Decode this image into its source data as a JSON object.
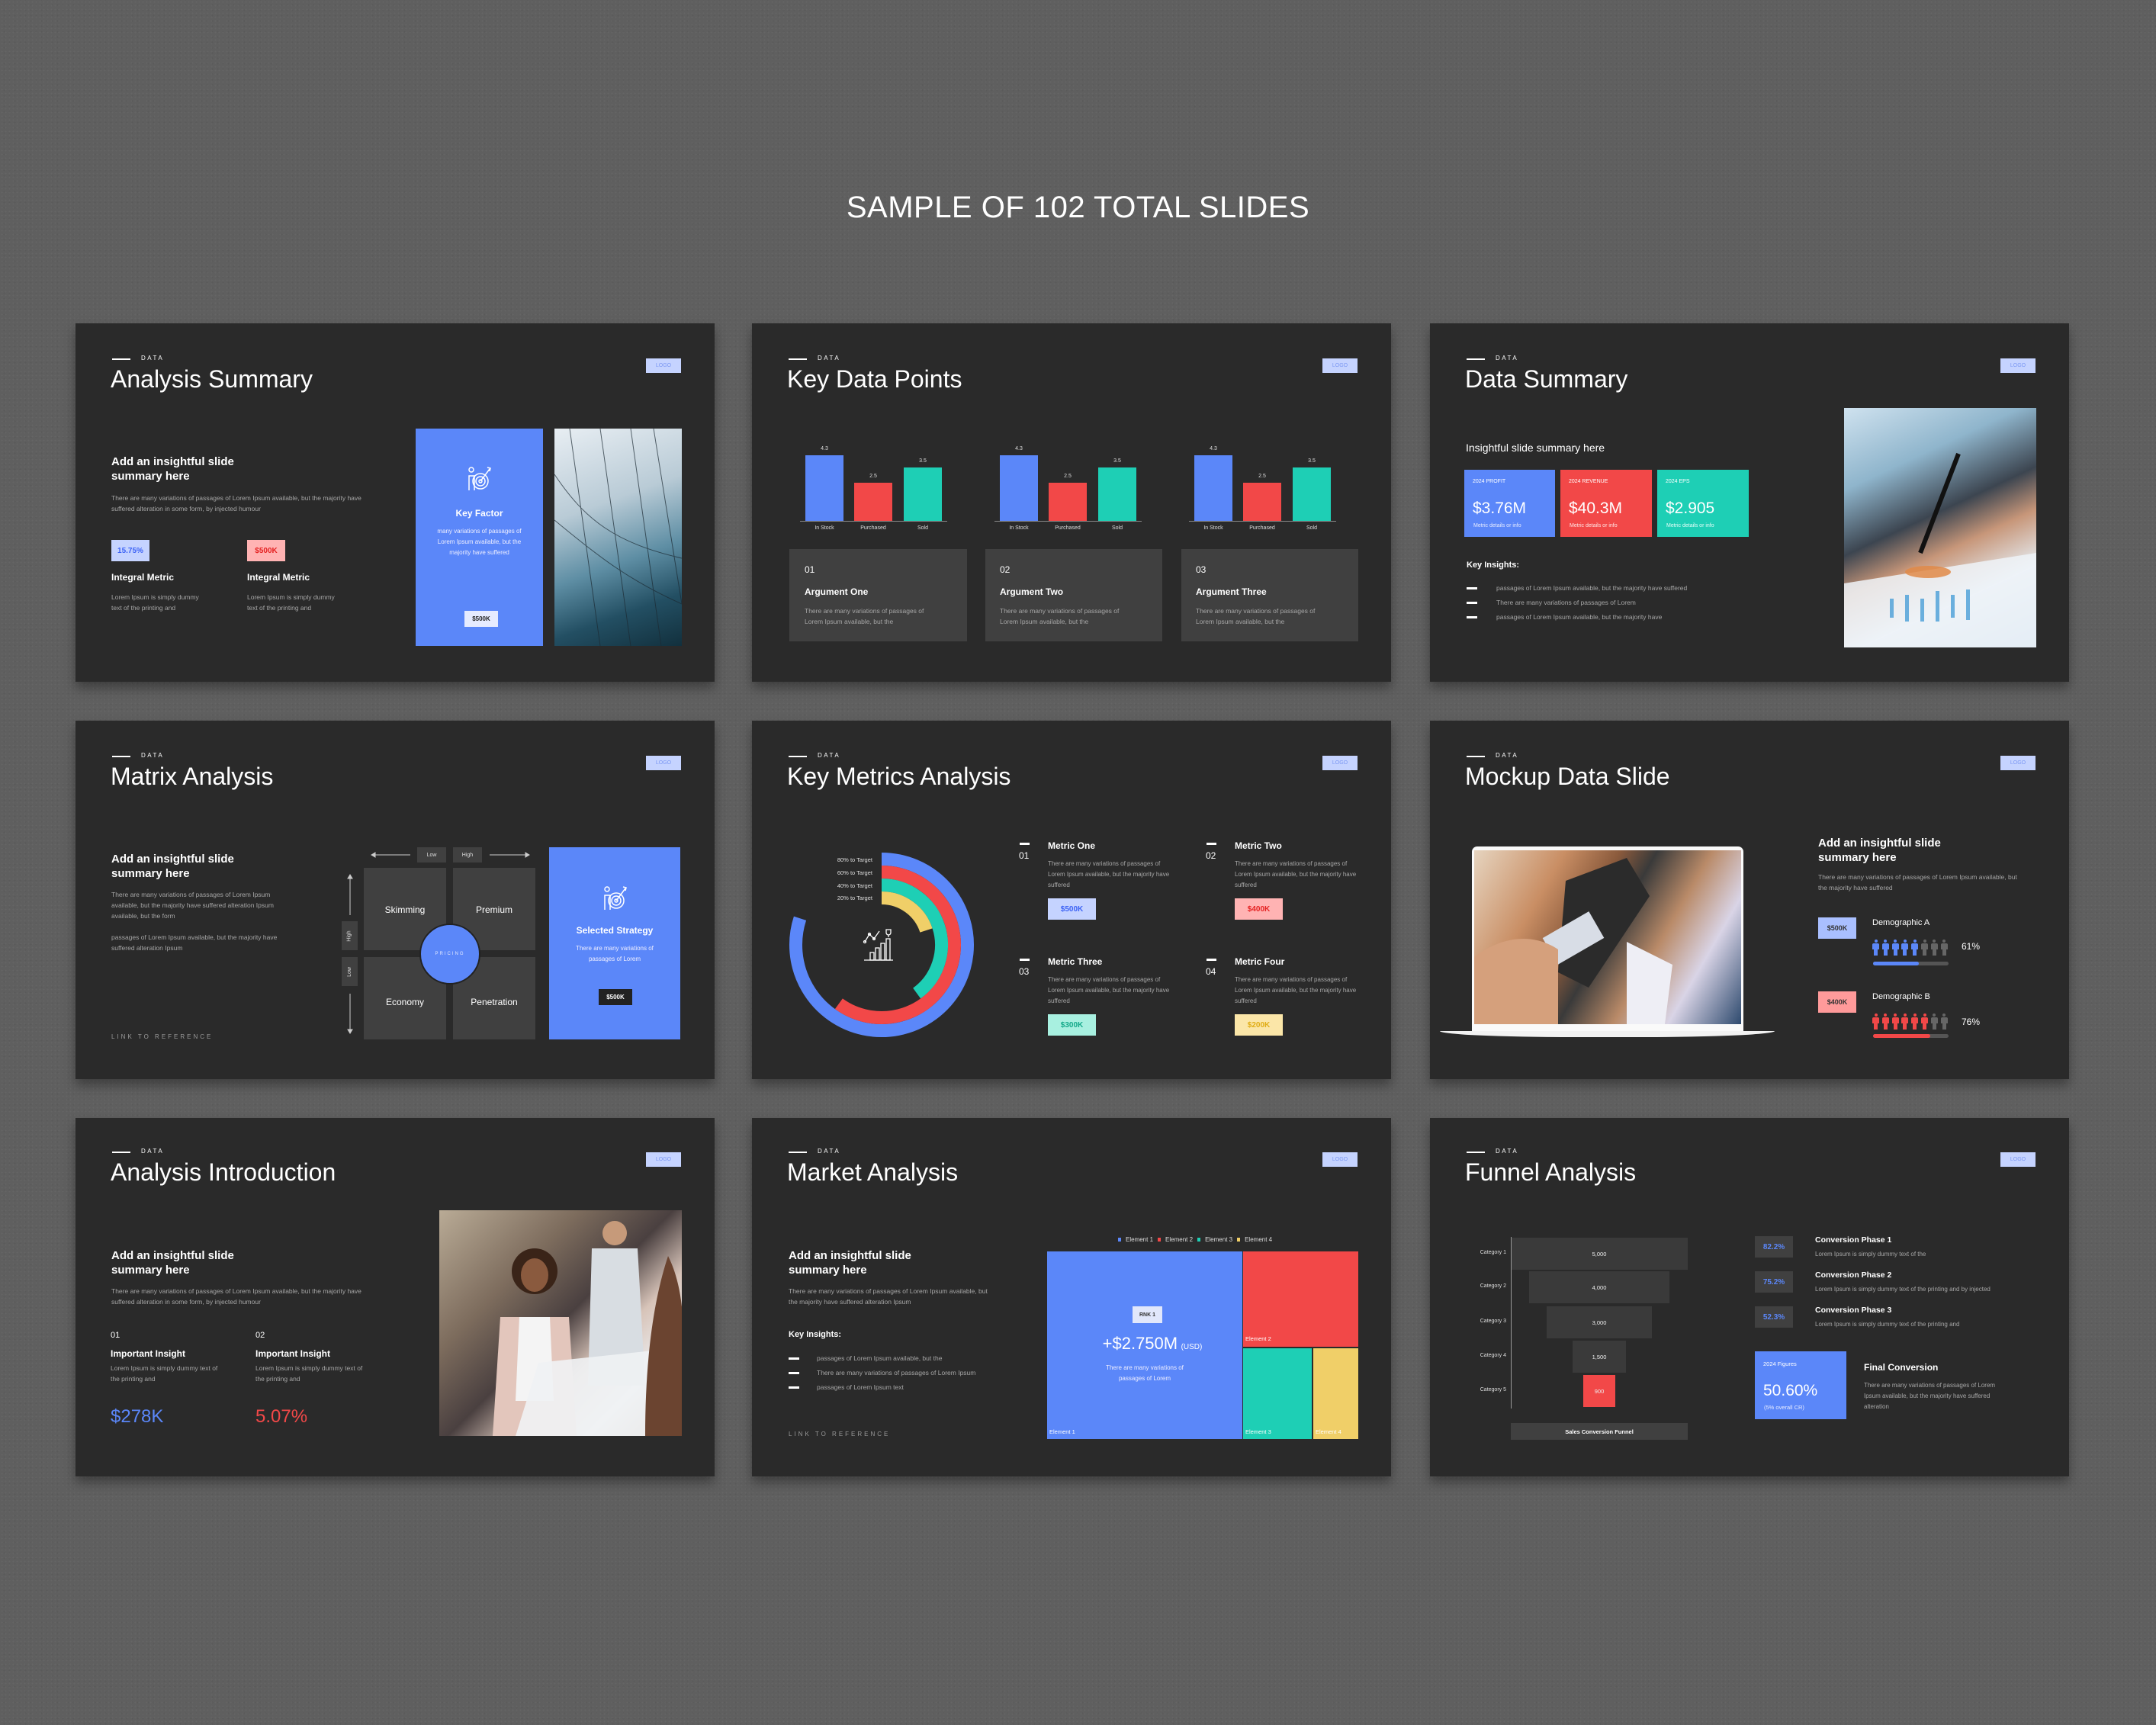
{
  "header": {
    "title": "SAMPLE OF 102 TOTAL SLIDES"
  },
  "common": {
    "eyebrow": "DATA",
    "logo": "LOGO"
  },
  "colors": {
    "blue": "#5b87f9",
    "red": "#f24848",
    "green": "#1ecfb5",
    "yellow": "#f0cf68",
    "slide_bg": "#2a2a2a",
    "card_bg": "#404040"
  },
  "slides": {
    "analysis_summary": {
      "title": "Analysis Summary",
      "subtitle": "Add an insightful slide summary here",
      "body": "There are many variations of passages of Lorem Ipsum available, but the majority have suffered alteration in some form, by injected humour",
      "metrics": [
        {
          "value": "15.75%",
          "label": "Integral Metric",
          "text": "Lorem Ipsum is simply dummy text of the printing and"
        },
        {
          "value": "$500K",
          "label": "Integral Metric",
          "text": "Lorem Ipsum is simply dummy text of the printing and"
        }
      ],
      "card": {
        "icon": "target-icon",
        "title": "Key Factor",
        "text": "many variations of passages of Lorem Ipsum available, but the majority have suffered",
        "button": "$500K"
      }
    },
    "key_data_points": {
      "title": "Key Data Points",
      "cards": [
        {
          "num": "01",
          "title": "Argument One",
          "text": "There are many variations of passages of Lorem Ipsum available, but the"
        },
        {
          "num": "02",
          "title": "Argument Two",
          "text": "There are many variations of passages of Lorem Ipsum available, but the"
        },
        {
          "num": "03",
          "title": "Argument Three",
          "text": "There are many variations of passages of Lorem Ipsum available, but the"
        }
      ]
    },
    "data_summary": {
      "title": "Data Summary",
      "subtitle": "Insightful slide summary here",
      "boxes": [
        {
          "label": "2024 PROFIT",
          "value": "$3.76M",
          "detail": "Metric details or info"
        },
        {
          "label": "2024 REVENUE",
          "value": "$40.3M",
          "detail": "Metric details or info"
        },
        {
          "label": "2024 EPS",
          "value": "$2.905",
          "detail": "Metric details or info"
        }
      ],
      "insights_title": "Key Insights:",
      "insights": [
        "passages of Lorem Ipsum available, but the majority have suffered",
        "There are many variations of passages of Lorem",
        "passages of Lorem Ipsum available, but the majority have"
      ]
    },
    "matrix_analysis": {
      "title": "Matrix Analysis",
      "subtitle": "Add an insightful slide summary here",
      "body1": "There are many variations of passages of Lorem Ipsum available, but the majority have suffered alteration Ipsum available, but the form",
      "body2": "passages of Lorem Ipsum available, but the majority have suffered alteration Ipsum",
      "link": "LINK TO REFERENCE",
      "axis": {
        "low": "Low",
        "high": "High"
      },
      "cells": [
        "Skimming",
        "Premium",
        "Economy",
        "Penetration"
      ],
      "center": "PRICING",
      "card": {
        "icon": "target-icon",
        "title": "Selected Strategy",
        "text": "There are many variations of passages of Lorem",
        "button": "$500K"
      }
    },
    "key_metrics": {
      "title": "Key Metrics Analysis",
      "metrics": [
        {
          "num": "01",
          "title": "Metric One",
          "text": "There are many variations of passages of Lorem Ipsum available, but the majority have suffered",
          "value": "$500K"
        },
        {
          "num": "02",
          "title": "Metric Two",
          "text": "There are many variations of passages of Lorem Ipsum available, but the majority have suffered",
          "value": "$400K"
        },
        {
          "num": "03",
          "title": "Metric Three",
          "text": "There are many variations of passages of Lorem Ipsum available, but the majority have suffered",
          "value": "$300K"
        },
        {
          "num": "04",
          "title": "Metric Four",
          "text": "There are many variations of passages of Lorem Ipsum available, but the majority have suffered",
          "value": "$200K"
        }
      ]
    },
    "mockup": {
      "title": "Mockup Data Slide",
      "subtitle": "Add an insightful slide summary here",
      "body": "There are many variations of passages of Lorem Ipsum available, but the majority have suffered",
      "demographics": [
        {
          "value": "$500K",
          "label": "Demographic A",
          "percent_label": "61%",
          "percent": 61,
          "icons_filled": 5,
          "icons_total": 8
        },
        {
          "value": "$400K",
          "label": "Demographic B",
          "percent_label": "76%",
          "percent": 76,
          "icons_filled": 6,
          "icons_total": 8
        }
      ]
    },
    "analysis_intro": {
      "title": "Analysis Introduction",
      "subtitle": "Add an insightful slide summary here",
      "body": "There are many variations of passages of Lorem Ipsum available, but the majority have suffered alteration in some form, by injected humour",
      "insights": [
        {
          "num": "01",
          "title": "Important Insight",
          "text": "Lorem Ipsum is simply dummy text of the printing and",
          "value": "$278K"
        },
        {
          "num": "02",
          "title": "Important Insight",
          "text": "Lorem Ipsum is simply dummy text of the printing and",
          "value": "5.07%"
        }
      ]
    },
    "market_analysis": {
      "title": "Market Analysis",
      "subtitle": "Add an insightful slide summary here",
      "body": "There are many variations of passages of Lorem Ipsum available, but the majority have suffered alteration Ipsum",
      "insights_title": "Key Insights:",
      "insights": [
        "passages of Lorem Ipsum available, but the",
        "There are many variations of passages of Lorem Ipsum",
        "passages of Lorem Ipsum text"
      ],
      "link": "LINK TO REFERENCE",
      "legend": [
        "Element 1",
        "Element 2",
        "Element 3",
        "Element 4"
      ],
      "tiles": [
        "Element 1",
        "Element 2",
        "Element 3",
        "Element 4"
      ],
      "rank": "RNK 1",
      "value": "+$2.750M",
      "unit": "(USD)",
      "value_text": "There are many variations of passages of Lorem"
    },
    "funnel": {
      "title": "Funnel Analysis",
      "funnel_label": "Sales Conversion Funnel",
      "phases": [
        {
          "pct": "82.2%",
          "title": "Conversion Phase 1",
          "text": "Lorem Ipsum is simply dummy text of the"
        },
        {
          "pct": "75.2%",
          "title": "Conversion Phase 2",
          "text": "Lorem Ipsum is simply dummy text of the printing and by injected"
        },
        {
          "pct": "52.3%",
          "title": "Conversion Phase 3",
          "text": "Lorem Ipsum is simply dummy text of the printing and"
        }
      ],
      "final": {
        "label": "2024 Figures",
        "value": "50.60%",
        "note": "(5% overall CR)",
        "title": "Final Conversion",
        "text": "There are many variations of passages of Lorem Ipsum available, but the majority have suffered alteration"
      }
    }
  },
  "chart_data": [
    {
      "type": "bar",
      "categories": [
        "In Stock",
        "Purchased",
        "Sold"
      ],
      "values": [
        4.3,
        2.5,
        3.5
      ],
      "labels": [
        "4.3",
        "2.5",
        "3.5"
      ],
      "colors": [
        "#5b87f9",
        "#f24848",
        "#1ecfb5"
      ],
      "copies": 3
    },
    {
      "type": "radial-bar",
      "categories": [
        "80% to Target",
        "60% to Target",
        "40% to Target",
        "20% to Target"
      ],
      "values": [
        80,
        60,
        40,
        20
      ],
      "colors": [
        "#5b87f9",
        "#f24848",
        "#1ecfb5",
        "#f0cf68"
      ]
    },
    {
      "type": "funnel",
      "categories": [
        "Category 1",
        "Category 2",
        "Category 3",
        "Category 4",
        "Category 5"
      ],
      "values": [
        5000,
        4000,
        3000,
        1500,
        900
      ],
      "labels": [
        "5,000",
        "4,000",
        "3,000",
        "1,500",
        "900"
      ]
    }
  ]
}
